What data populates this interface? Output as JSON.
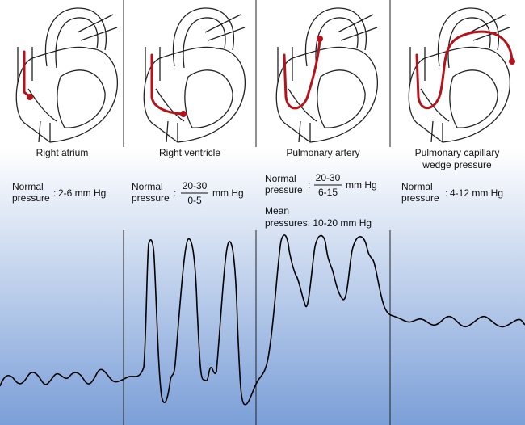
{
  "panels": [
    {
      "label": [
        "Right atrium"
      ],
      "pressure_label": [
        "Normal",
        "pressure"
      ],
      "separator": ":",
      "pressure": "2-6 mm Hg"
    },
    {
      "label": [
        "Right ventricle"
      ],
      "pressure_label": [
        "Normal",
        "pressure"
      ],
      "separator": ":",
      "systolic": "20-30",
      "diastolic": "0-5",
      "unit": "mm Hg"
    },
    {
      "label": [
        "Pulmonary artery"
      ],
      "pressure_label": [
        "Normal",
        "pressure"
      ],
      "separator": ":",
      "systolic": "20-30",
      "diastolic": "6-15",
      "unit": "mm Hg",
      "mean": [
        "Mean",
        "pressures: 10-20 mm Hg"
      ]
    },
    {
      "label": [
        "Pulmonary capillary",
        "wedge pressure"
      ],
      "pressure_label": [
        "Normal",
        "pressure"
      ],
      "separator": ":",
      "pressure": "4-12 mm Hg"
    }
  ]
}
